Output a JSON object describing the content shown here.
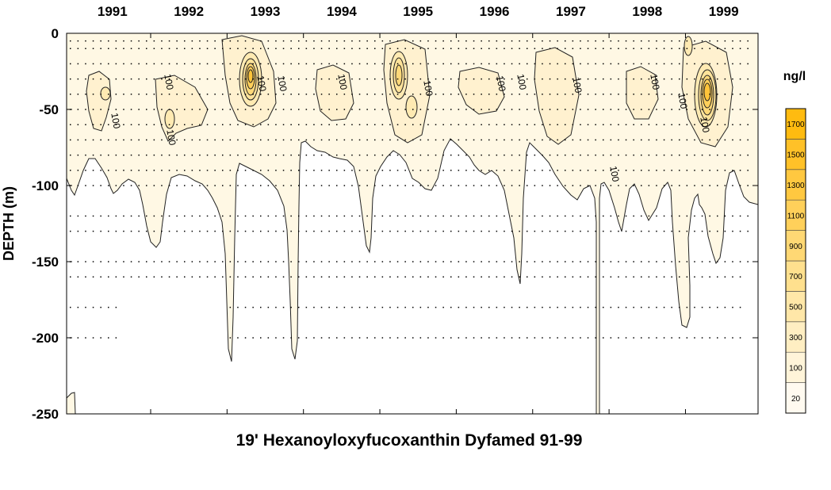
{
  "chart_data": {
    "type": "heatmap",
    "title": "19' Hexanoyloxyfucoxanthin Dyfamed 91-99",
    "ylabel": "DEPTH (m)",
    "xlabel": "",
    "x_tick_labels": [
      "1991",
      "1992",
      "1993",
      "1994",
      "1995",
      "1996",
      "1997",
      "1998",
      "1999"
    ],
    "xlim": [
      1990.9,
      1999.95
    ],
    "y_ticks": [
      0,
      -50,
      -100,
      -150,
      -200,
      -250
    ],
    "y_tick_labels": [
      "0",
      "-50",
      "-100",
      "-150",
      "-200",
      "-250"
    ],
    "ylim": [
      -250,
      0
    ],
    "colorbar": {
      "unit": "ng/l",
      "levels": [
        20,
        100,
        300,
        500,
        700,
        900,
        1100,
        1300,
        1500,
        1700
      ],
      "level_labels": [
        "20",
        "100",
        "300",
        "500",
        "700",
        "900",
        "1100",
        "1300",
        "1500",
        "1700"
      ],
      "colors": [
        "#fffaf0",
        "#fff4d9",
        "#ffeec2",
        "#ffe7a8",
        "#ffe08e",
        "#ffd874",
        "#ffd05a",
        "#ffc840",
        "#ffc128",
        "#ffbb10"
      ]
    },
    "contour_label": "100",
    "max_concentrations": [
      {
        "year": 1993,
        "depth": -30,
        "value": 1700
      },
      {
        "year": 1995,
        "depth": -30,
        "value": 900
      },
      {
        "year": 1999,
        "depth": -40,
        "value": 1700
      }
    ],
    "grid": false
  }
}
